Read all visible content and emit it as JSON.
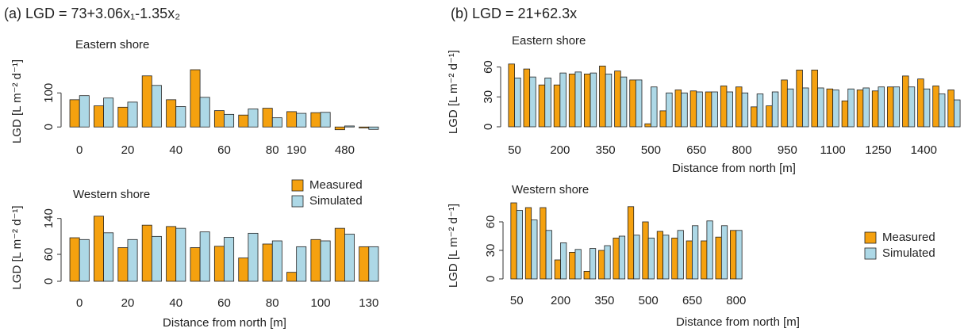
{
  "chart_data": [
    {
      "type": "bar",
      "title": "(a)  LGD = 73+3.06x₁-1.35x₂",
      "subtitle": "Eastern shore",
      "y_label": "LGD [L m⁻² d⁻¹]",
      "categories": [
        "0",
        null,
        "20",
        null,
        "40",
        null,
        "60",
        null,
        "80",
        "190",
        null,
        "480",
        null
      ],
      "series": [
        {
          "color": "#f5a10f",
          "values": [
            80,
            62,
            58,
            150,
            80,
            168,
            48,
            35,
            55,
            45,
            42,
            -8,
            -3
          ]
        },
        {
          "color": "#add8e6",
          "values": [
            92,
            85,
            73,
            122,
            60,
            87,
            37,
            53,
            27,
            40,
            43,
            3,
            -7
          ]
        }
      ],
      "ylim": [
        -25,
        175
      ],
      "yticks": [
        0,
        100
      ]
    },
    {
      "type": "bar",
      "subtitle": "Western shore",
      "y_label": "LGD [L m⁻² d⁻¹]",
      "x_label": "Distance from north [m]",
      "categories": [
        "0",
        null,
        "20",
        null,
        "40",
        null,
        "60",
        null,
        "80",
        null,
        "100",
        null,
        "130"
      ],
      "series": [
        {
          "name": "Measured",
          "color": "#f5a10f",
          "values": [
            97,
            145,
            75,
            125,
            122,
            75,
            78,
            52,
            83,
            20,
            93,
            118,
            77
          ]
        },
        {
          "name": "Simulated",
          "color": "#add8e6",
          "values": [
            93,
            108,
            93,
            100,
            118,
            110,
            98,
            107,
            90,
            77,
            90,
            105,
            77
          ]
        }
      ],
      "ylim": [
        0,
        150
      ],
      "yticks": [
        0,
        60,
        140
      ],
      "legend": "top-right"
    },
    {
      "type": "bar",
      "title": "(b)  LGD = 21+62.3x",
      "subtitle": "Eastern shore",
      "y_label": "LGD [L m⁻² d⁻¹]",
      "x_label": "Distance from north [m]",
      "categories": [
        "50",
        null,
        null,
        "200",
        null,
        null,
        "350",
        null,
        null,
        "500",
        null,
        null,
        "650",
        null,
        null,
        "800",
        null,
        null,
        "950",
        null,
        null,
        "1100",
        null,
        null,
        "1250",
        null,
        null,
        "1400",
        null,
        null
      ],
      "series": [
        {
          "color": "#f5a10f",
          "values": [
            63,
            58,
            42,
            42,
            53,
            53,
            61,
            56,
            47,
            3,
            16,
            37,
            36,
            35,
            41,
            40,
            20,
            21,
            47,
            57,
            57,
            38,
            26,
            37,
            36,
            40,
            51,
            48,
            41,
            37
          ]
        },
        {
          "color": "#add8e6",
          "values": [
            49,
            50,
            49,
            54,
            55,
            54,
            53,
            50,
            47,
            40,
            34,
            34,
            35,
            35,
            35,
            34,
            33,
            35,
            38,
            39,
            39,
            37,
            38,
            39,
            40,
            40,
            40,
            38,
            33,
            27
          ]
        }
      ],
      "ylim": [
        0,
        70
      ],
      "yticks": [
        0,
        30,
        60
      ]
    },
    {
      "type": "bar",
      "subtitle": "Western shore",
      "y_label": "LGD [L m⁻² d⁻¹]",
      "x_label": "Distance from north [m]",
      "categories": [
        "50",
        null,
        null,
        "200",
        null,
        null,
        "350",
        null,
        null,
        "500",
        null,
        null,
        "650",
        null,
        null,
        "800"
      ],
      "series": [
        {
          "name": "Measured",
          "color": "#f5a10f",
          "values": [
            80,
            75,
            75,
            20,
            28,
            8,
            30,
            43,
            76,
            60,
            50,
            43,
            40,
            40,
            44,
            51
          ]
        },
        {
          "name": "Simulated",
          "color": "#add8e6",
          "values": [
            72,
            62,
            51,
            38,
            31,
            32,
            35,
            45,
            46,
            43,
            46,
            51,
            56,
            61,
            56,
            51
          ]
        }
      ],
      "ylim": [
        0,
        70
      ],
      "yticks": [
        0,
        30,
        60
      ],
      "legend": "right"
    }
  ]
}
